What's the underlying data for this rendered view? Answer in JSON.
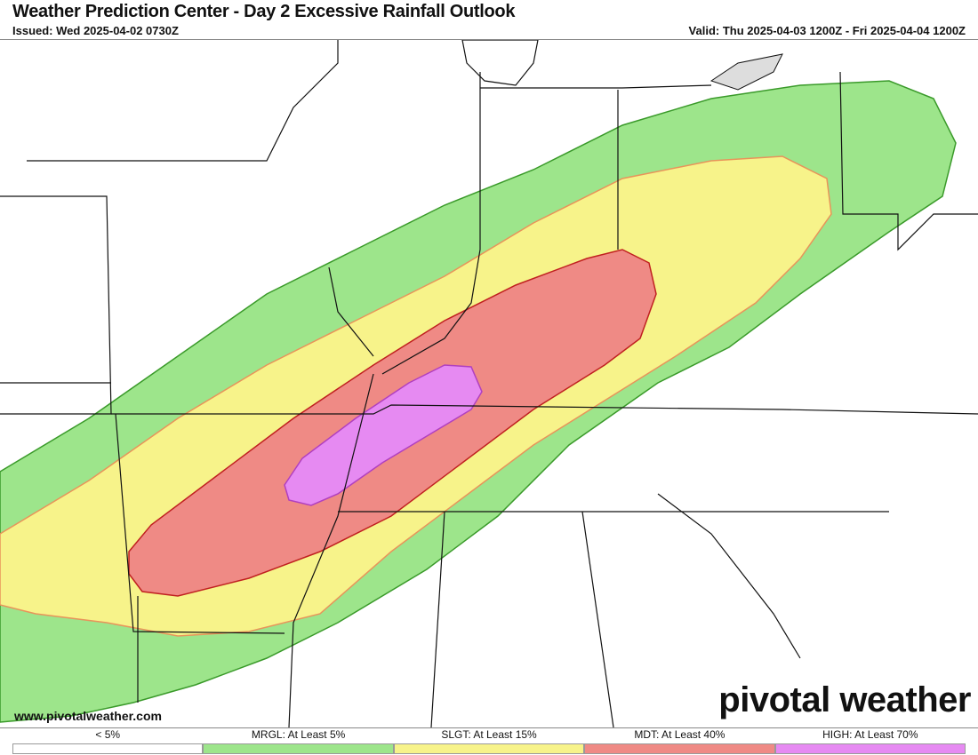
{
  "header": {
    "title": "Weather Prediction Center - Day 2 Excessive Rainfall Outlook",
    "issued": "Issued: Wed 2025-04-02 0730Z",
    "valid": "Valid: Thu 2025-04-03 1200Z - Fri 2025-04-04 1200Z"
  },
  "branding": {
    "site": "www.pivotalweather.com",
    "logo": "pivotal weather"
  },
  "legend": [
    {
      "label": "< 5%",
      "color": "#ffffff"
    },
    {
      "label": "MRGL: At Least 5%",
      "color": "#9de58b"
    },
    {
      "label": "SLGT: At Least 15%",
      "color": "#f7f38a"
    },
    {
      "label": "MDT: At Least 40%",
      "color": "#ef8a85"
    },
    {
      "label": "HIGH: At Least 70%",
      "color": "#e68af2"
    }
  ]
}
